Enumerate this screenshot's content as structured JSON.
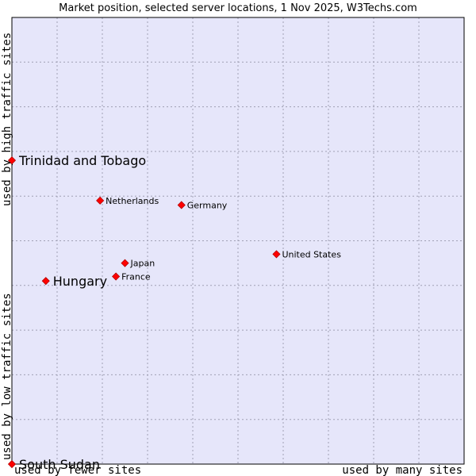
{
  "chart_data": {
    "type": "scatter",
    "title": "Market position, selected server locations, 1 Nov 2025, W3Techs.com",
    "xlabel_left": "used by fewer sites",
    "xlabel_right": "used by many sites",
    "ylabel_bottom": "used by low traffic sites",
    "ylabel_top": "used by high traffic sites",
    "xlim": [
      0,
      10
    ],
    "ylim": [
      0,
      10
    ],
    "grid": true,
    "colors": {
      "plot_bg": "#e6e6fa",
      "grid": "#a0a0b4",
      "marker": "#ff0000",
      "marker_edge": "#b40000",
      "frame": "#000000"
    },
    "points": [
      {
        "name": "Trinidad and Tobago",
        "x": 0.0,
        "y": 6.8,
        "highlight": true
      },
      {
        "name": "Netherlands",
        "x": 1.95,
        "y": 5.9,
        "highlight": false
      },
      {
        "name": "Germany",
        "x": 3.75,
        "y": 5.8,
        "highlight": false
      },
      {
        "name": "United States",
        "x": 5.85,
        "y": 4.7,
        "highlight": false
      },
      {
        "name": "Japan",
        "x": 2.5,
        "y": 4.5,
        "highlight": false
      },
      {
        "name": "France",
        "x": 2.3,
        "y": 4.2,
        "highlight": false
      },
      {
        "name": "Hungary",
        "x": 0.75,
        "y": 4.1,
        "highlight": true
      },
      {
        "name": "South Sudan",
        "x": 0.0,
        "y": 0.0,
        "highlight": true
      }
    ]
  }
}
